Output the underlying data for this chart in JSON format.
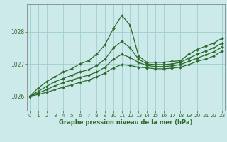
{
  "title": "Graphe pression niveau de la mer (hPa)",
  "bg_color": "#cdeaea",
  "grid_color": "#9ecece",
  "line_color": "#2d6a2d",
  "xlim": [
    -0.3,
    23.3
  ],
  "ylim": [
    1025.55,
    1028.85
  ],
  "yticks": [
    1026,
    1027,
    1028
  ],
  "xticks": [
    0,
    1,
    2,
    3,
    4,
    5,
    6,
    7,
    8,
    9,
    10,
    11,
    12,
    13,
    14,
    15,
    16,
    17,
    18,
    19,
    20,
    21,
    22,
    23
  ],
  "series": [
    {
      "x": [
        0,
        1,
        2,
        3,
        4,
        5,
        6,
        7,
        8,
        9,
        10,
        11,
        12,
        13,
        14,
        15,
        16,
        17,
        18,
        19,
        20,
        21,
        22,
        23
      ],
      "y": [
        1026.0,
        1026.25,
        1026.45,
        1026.6,
        1026.75,
        1026.85,
        1027.0,
        1027.1,
        1027.3,
        1027.6,
        1028.1,
        1028.5,
        1028.2,
        1027.25,
        1027.05,
        1027.05,
        1027.05,
        1027.08,
        1027.1,
        1027.3,
        1027.45,
        1027.55,
        1027.65,
        1027.8
      ]
    },
    {
      "x": [
        0,
        1,
        2,
        3,
        4,
        5,
        6,
        7,
        8,
        9,
        10,
        11,
        12,
        13,
        14,
        15,
        16,
        17,
        18,
        19,
        20,
        21,
        22,
        23
      ],
      "y": [
        1026.0,
        1026.15,
        1026.3,
        1026.45,
        1026.55,
        1026.65,
        1026.75,
        1026.82,
        1026.95,
        1027.15,
        1027.5,
        1027.7,
        1027.5,
        1027.15,
        1027.0,
        1026.98,
        1026.98,
        1027.0,
        1027.05,
        1027.18,
        1027.3,
        1027.4,
        1027.5,
        1027.65
      ]
    },
    {
      "x": [
        0,
        1,
        2,
        3,
        4,
        5,
        6,
        7,
        8,
        9,
        10,
        11,
        12,
        13,
        14,
        15,
        16,
        17,
        18,
        19,
        20,
        21,
        22,
        23
      ],
      "y": [
        1026.0,
        1026.1,
        1026.2,
        1026.32,
        1026.42,
        1026.5,
        1026.58,
        1026.65,
        1026.75,
        1026.9,
        1027.15,
        1027.3,
        1027.2,
        1027.05,
        1026.95,
        1026.92,
        1026.92,
        1026.94,
        1026.98,
        1027.08,
        1027.18,
        1027.28,
        1027.38,
        1027.52
      ]
    },
    {
      "x": [
        0,
        1,
        2,
        3,
        4,
        5,
        6,
        7,
        8,
        9,
        10,
        11,
        12,
        13,
        14,
        15,
        16,
        17,
        18,
        19,
        20,
        21,
        22,
        23
      ],
      "y": [
        1026.0,
        1026.05,
        1026.12,
        1026.2,
        1026.28,
        1026.35,
        1026.43,
        1026.5,
        1026.6,
        1026.72,
        1026.88,
        1026.98,
        1026.95,
        1026.9,
        1026.88,
        1026.85,
        1026.85,
        1026.87,
        1026.9,
        1026.98,
        1027.08,
        1027.15,
        1027.25,
        1027.4
      ]
    }
  ],
  "figsize": [
    3.2,
    2.0
  ],
  "dpi": 100,
  "title_fontsize": 6.0,
  "tick_fontsize": 5.2,
  "linewidth": 0.9,
  "markersize": 2.0
}
